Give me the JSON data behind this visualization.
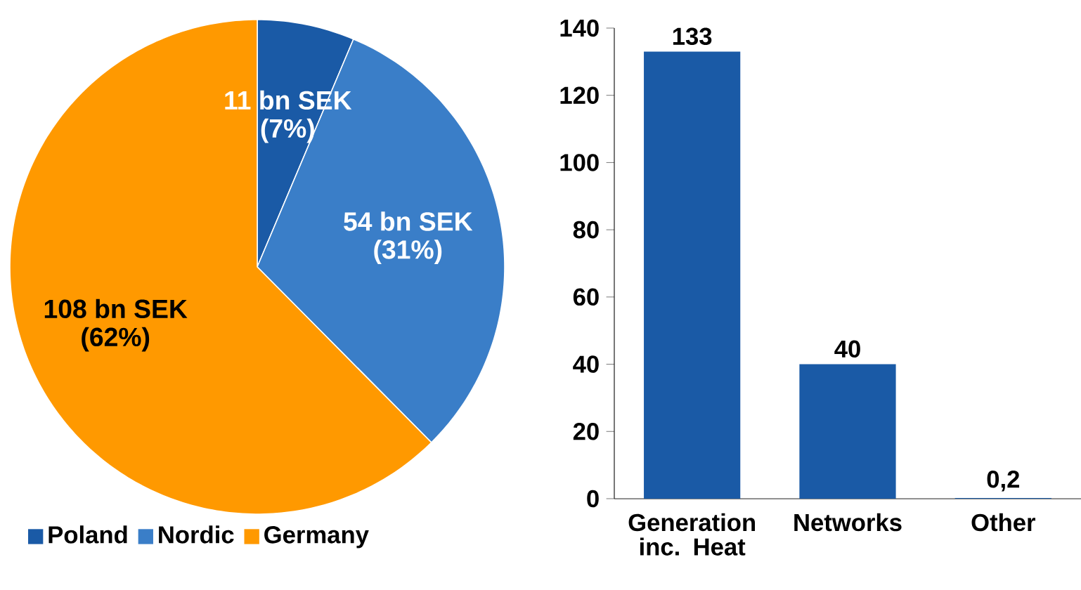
{
  "chart_data": [
    {
      "type": "pie",
      "categories": [
        "Poland",
        "Nordic",
        "Germany"
      ],
      "values": [
        11,
        54,
        108
      ],
      "colors": [
        "#1a5aa6",
        "#3a7ec8",
        "#ff9900"
      ],
      "value_labels": [
        "11 bn SEK",
        "54 bn SEK",
        "108 bn SEK"
      ],
      "annotations": [
        "(7%)",
        "(31%)",
        "(62%)"
      ],
      "legend": "bottom"
    },
    {
      "type": "bar",
      "categories": [
        "Generation inc. Heat",
        "Networks",
        "Other"
      ],
      "values": [
        133,
        40,
        0.2
      ],
      "color": "#1a5aa6",
      "value_labels": [
        "133",
        "40",
        "0,2"
      ],
      "ylim": [
        0,
        140
      ],
      "yticks": [
        0,
        20,
        40,
        60,
        80,
        100,
        120,
        140
      ]
    }
  ]
}
